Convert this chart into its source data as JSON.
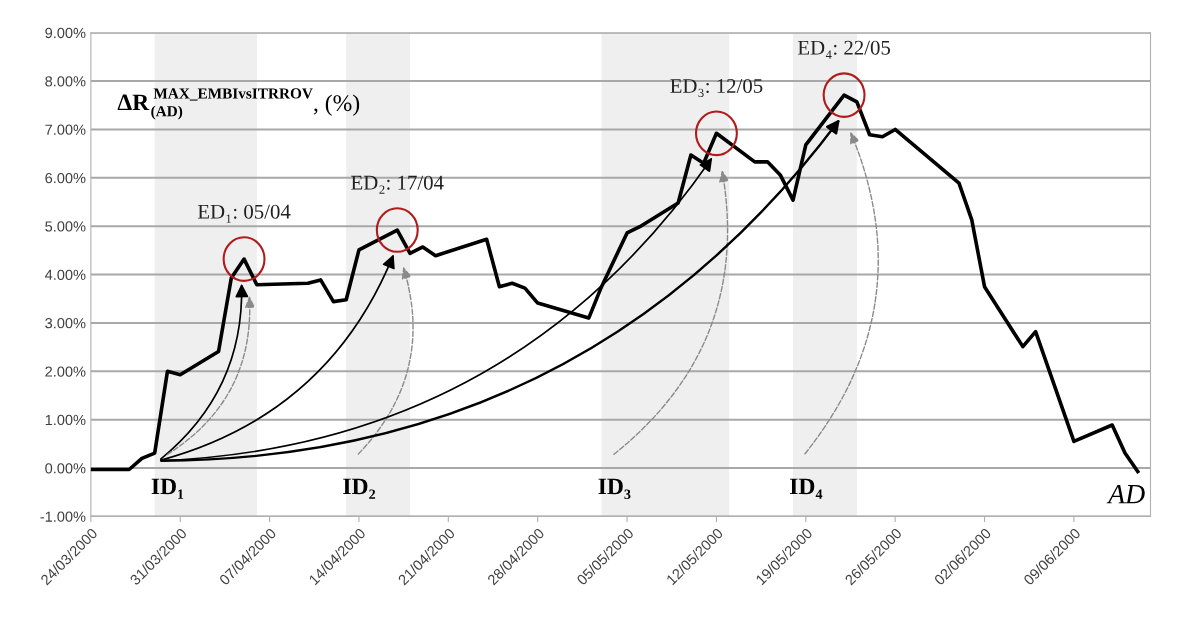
{
  "chart_data": {
    "type": "line",
    "xlabel": "AD",
    "x": [
      "2000-03-24",
      "2000-03-27",
      "2000-03-28",
      "2000-03-29",
      "2000-03-30",
      "2000-03-31",
      "2000-04-03",
      "2000-04-04",
      "2000-04-05",
      "2000-04-06",
      "2000-04-10",
      "2000-04-11",
      "2000-04-12",
      "2000-04-13",
      "2000-04-14",
      "2000-04-17",
      "2000-04-18",
      "2000-04-19",
      "2000-04-20",
      "2000-04-24",
      "2000-04-25",
      "2000-04-26",
      "2000-04-27",
      "2000-04-28",
      "2000-05-02",
      "2000-05-03",
      "2000-05-05",
      "2000-05-06",
      "2000-05-09",
      "2000-05-10",
      "2000-05-11",
      "2000-05-12",
      "2000-05-15",
      "2000-05-16",
      "2000-05-17",
      "2000-05-18",
      "2000-05-19",
      "2000-05-22",
      "2000-05-23",
      "2000-05-24",
      "2000-05-25",
      "2000-05-26",
      "2000-05-31",
      "2000-06-01",
      "2000-06-02",
      "2000-06-05",
      "2000-06-06",
      "2000-06-09",
      "2000-06-12",
      "2000-06-13",
      "2000-06-14"
    ],
    "series": [
      {
        "color": "#000000",
        "values": [
          -0.03,
          -0.03,
          0.2,
          0.31,
          2.0,
          1.93,
          2.41,
          3.93,
          4.32,
          3.79,
          3.82,
          3.89,
          3.44,
          3.48,
          4.51,
          4.92,
          4.44,
          4.57,
          4.39,
          4.73,
          3.75,
          3.82,
          3.72,
          3.41,
          3.1,
          3.75,
          4.86,
          4.99,
          5.48,
          6.47,
          6.3,
          6.92,
          6.33,
          6.33,
          6.06,
          5.54,
          6.68,
          7.71,
          7.57,
          6.89,
          6.85,
          7.0,
          5.89,
          5.13,
          3.75,
          2.51,
          2.82,
          0.55,
          0.89,
          0.31,
          -0.07
        ]
      }
    ],
    "xlim": [
      "2000-03-24",
      "2000-06-15"
    ],
    "xticks": [
      {
        "value": "2000-03-24",
        "label": "24/03/2000"
      },
      {
        "value": "2000-03-31",
        "label": "31/03/2000"
      },
      {
        "value": "2000-04-07",
        "label": "07/04/2000"
      },
      {
        "value": "2000-04-14",
        "label": "14/04/2000"
      },
      {
        "value": "2000-04-21",
        "label": "21/04/2000"
      },
      {
        "value": "2000-04-28",
        "label": "28/04/2000"
      },
      {
        "value": "2000-05-05",
        "label": "05/05/2000"
      },
      {
        "value": "2000-05-12",
        "label": "12/05/2000"
      },
      {
        "value": "2000-05-19",
        "label": "19/05/2000"
      },
      {
        "value": "2000-05-26",
        "label": "26/05/2000"
      },
      {
        "value": "2000-06-02",
        "label": "02/06/2000"
      },
      {
        "value": "2000-06-09",
        "label": "09/06/2000"
      }
    ],
    "ylim": [
      -1,
      9
    ],
    "yticks": [
      {
        "value": -1,
        "label": "-1.00%"
      },
      {
        "value": 0,
        "label": "0.00%"
      },
      {
        "value": 1,
        "label": "1.00%"
      },
      {
        "value": 2,
        "label": "2.00%"
      },
      {
        "value": 3,
        "label": "3.00%"
      },
      {
        "value": 4,
        "label": "4.00%"
      },
      {
        "value": 5,
        "label": "5.00%"
      },
      {
        "value": 6,
        "label": "6.00%"
      },
      {
        "value": 7,
        "label": "7.00%"
      },
      {
        "value": 8,
        "label": "8.00%"
      },
      {
        "value": 9,
        "label": "9.00%"
      }
    ],
    "bands": [
      {
        "axis": "x",
        "from": "2000-03-29",
        "to": "2000-04-06",
        "label": "ID₁",
        "color": "#efefef"
      },
      {
        "axis": "x",
        "from": "2000-04-13",
        "to": "2000-04-18",
        "label": "ID₂",
        "color": "#efefef"
      },
      {
        "axis": "x",
        "from": "2000-05-03",
        "to": "2000-05-13",
        "label": "ID₃",
        "color": "#efefef"
      },
      {
        "axis": "x",
        "from": "2000-05-18",
        "to": "2000-05-23",
        "label": "ID₄",
        "color": "#efefef"
      }
    ],
    "annotations": [
      "ΔR$^{MAX_EMBIvsITRROV}$$_{(AD)}$, (%)",
      {
        "text": "ED₁: 05/04",
        "x": "2000-04-05",
        "y": 4.32
      },
      {
        "text": "ED₂: 17/04",
        "x": "2000-04-17",
        "y": 4.92
      },
      {
        "text": "ED₃: 12/05",
        "x": "2000-05-12",
        "y": 6.92
      },
      {
        "text": "ED₄: 22/05",
        "x": "2000-05-22",
        "y": 7.71
      }
    ],
    "grid": "y",
    "legend": false,
    "marker": "none",
    "line_style": "solid"
  }
}
